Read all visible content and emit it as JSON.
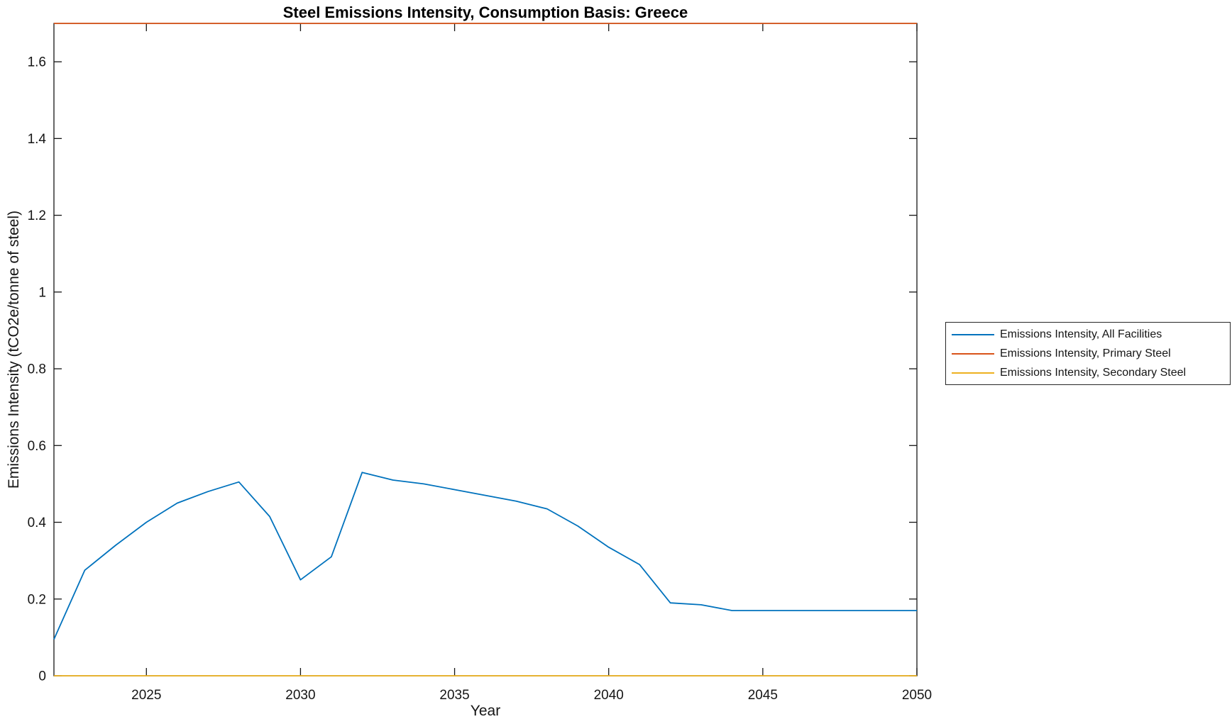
{
  "figure": {
    "background": "#ffffff",
    "axis_color": "#151515",
    "text_color": "#151515"
  },
  "chart_data": {
    "type": "line",
    "title": "Steel Emissions Intensity, Consumption Basis: Greece",
    "xlabel": "Year",
    "ylabel": "Emissions Intensity (tCO2e/tonne of steel)",
    "xlim": [
      2022,
      2050
    ],
    "ylim": [
      0,
      1.7
    ],
    "xticks": [
      2025,
      2030,
      2035,
      2040,
      2045,
      2050
    ],
    "yticks": [
      0,
      0.2,
      0.4,
      0.6,
      0.8,
      1,
      1.2,
      1.4,
      1.6
    ],
    "ytick_labels": [
      "0",
      "0.2",
      "0.4",
      "0.6",
      "0.8",
      "1",
      "1.2",
      "1.4",
      "1.6"
    ],
    "grid": false,
    "box": true,
    "legend_position": "right-outside",
    "x": [
      2022,
      2023,
      2024,
      2025,
      2026,
      2027,
      2028,
      2029,
      2030,
      2031,
      2032,
      2033,
      2034,
      2035,
      2036,
      2037,
      2038,
      2039,
      2040,
      2041,
      2042,
      2043,
      2044,
      2045,
      2046,
      2047,
      2048,
      2049,
      2050
    ],
    "series": [
      {
        "name": "Emissions Intensity, All Facilities",
        "color": "#0072BD",
        "values": [
          0.095,
          0.275,
          0.34,
          0.4,
          0.45,
          0.48,
          0.505,
          0.415,
          0.25,
          0.31,
          0.53,
          0.51,
          0.5,
          0.485,
          0.47,
          0.455,
          0.435,
          0.39,
          0.335,
          0.29,
          0.19,
          0.185,
          0.17,
          0.17,
          0.17,
          0.17,
          0.17,
          0.17,
          0.17
        ]
      },
      {
        "name": "Emissions Intensity, Primary Steel",
        "color": "#D95319",
        "values": [
          1.7,
          1.7,
          1.7,
          1.7,
          1.7,
          1.7,
          1.7,
          1.7,
          1.7,
          1.7,
          1.7,
          1.7,
          1.7,
          1.7,
          1.7,
          1.7,
          1.7,
          1.7,
          1.7,
          1.7,
          1.7,
          1.7,
          1.7,
          1.7,
          1.7,
          1.7,
          1.7,
          1.7,
          1.7
        ]
      },
      {
        "name": "Emissions Intensity, Secondary Steel",
        "color": "#EDB120",
        "values": [
          0,
          0,
          0,
          0,
          0,
          0,
          0,
          0,
          0,
          0,
          0,
          0,
          0,
          0,
          0,
          0,
          0,
          0,
          0,
          0,
          0,
          0,
          0,
          0,
          0,
          0,
          0,
          0,
          0
        ]
      }
    ]
  }
}
